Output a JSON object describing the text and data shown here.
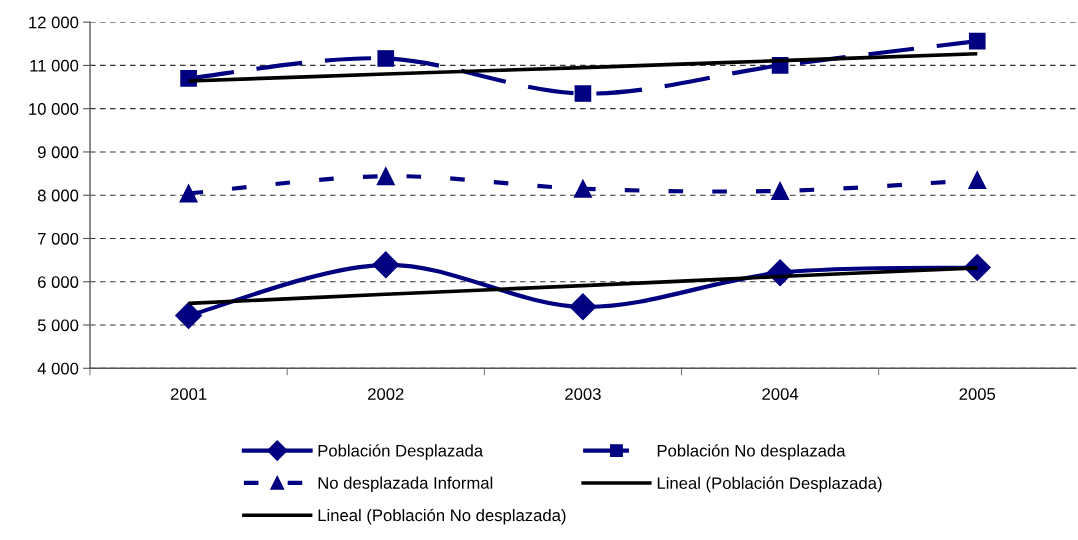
{
  "chart_data": {
    "type": "line",
    "categories": [
      "2001",
      "2002",
      "2003",
      "2004",
      "2005"
    ],
    "series": [
      {
        "name": "Población Desplazada",
        "color": "#000080",
        "values": [
          5220,
          6390,
          5420,
          6210,
          6330
        ],
        "marker": "diamond",
        "line_style": "solid"
      },
      {
        "name": "Población No desplazada",
        "color": "#000080",
        "values": [
          10700,
          11160,
          10350,
          11000,
          11560
        ],
        "marker": "square",
        "line_style": "dashed"
      },
      {
        "name": "No desplazada Informal",
        "color": "#000080",
        "values": [
          8040,
          8440,
          8150,
          8100,
          8350
        ],
        "marker": "triangle",
        "line_style": "dotted"
      },
      {
        "name": "Lineal (Población Desplazada)",
        "color": "#000000",
        "values": [
          5500,
          5710,
          5910,
          6120,
          6320
        ],
        "marker": "none",
        "line_style": "solid"
      },
      {
        "name": "Lineal (Población No desplazada)",
        "color": "#000000",
        "values": [
          10640,
          10800,
          10950,
          11110,
          11270
        ],
        "marker": "none",
        "line_style": "solid"
      }
    ],
    "ylim": [
      4000,
      12000
    ],
    "yticks": [
      {
        "value": 4000,
        "label": "4 000"
      },
      {
        "value": 5000,
        "label": "5 000"
      },
      {
        "value": 6000,
        "label": "6 000"
      },
      {
        "value": 7000,
        "label": "7 000"
      },
      {
        "value": 8000,
        "label": "8 000"
      },
      {
        "value": 9000,
        "label": "9 000"
      },
      {
        "value": 10000,
        "label": "10 000"
      },
      {
        "value": 11000,
        "label": "11 000"
      },
      {
        "value": 12000,
        "label": "12 000"
      }
    ],
    "grid": "y",
    "legend": "bottom"
  }
}
